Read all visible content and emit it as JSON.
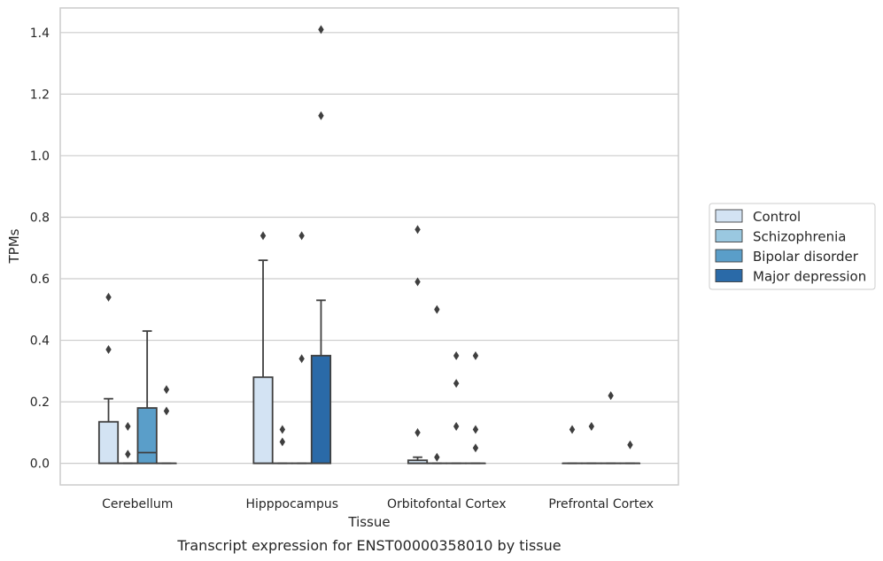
{
  "caption": "Transcript expression for ENST00000358010 by tissue",
  "chart_data": {
    "type": "box",
    "xlabel": "Tissue",
    "ylabel": "TPMs",
    "categories": [
      "Cerebellum",
      "Hipppocampus",
      "Orbitofontal Cortex",
      "Prefrontal Cortex"
    ],
    "ylim": [
      -0.07,
      1.48
    ],
    "yticks": [
      0.0,
      0.2,
      0.4,
      0.6,
      0.8,
      1.0,
      1.2,
      1.4
    ],
    "ytick_labels": [
      "0.0",
      "0.2",
      "0.4",
      "0.6",
      "0.8",
      "1.0",
      "1.2",
      "1.4"
    ],
    "grid": "horizontal",
    "legend_position": "right",
    "series": [
      {
        "name": "Control",
        "color": "#d3e3f3",
        "boxes": [
          {
            "q1": 0.0,
            "median": 0.0,
            "q3": 0.135,
            "whisker_low": 0.0,
            "whisker_high": 0.21,
            "outliers": [
              0.37,
              0.54
            ]
          },
          {
            "q1": 0.0,
            "median": 0.0,
            "q3": 0.28,
            "whisker_low": 0.0,
            "whisker_high": 0.66,
            "outliers": [
              0.74
            ]
          },
          {
            "q1": 0.0,
            "median": 0.0,
            "q3": 0.01,
            "whisker_low": 0.0,
            "whisker_high": 0.02,
            "outliers": [
              0.1,
              0.59,
              0.76
            ]
          },
          {
            "q1": 0.0,
            "median": 0.0,
            "q3": 0.0,
            "whisker_low": 0.0,
            "whisker_high": 0.0,
            "outliers": [
              0.11
            ]
          }
        ]
      },
      {
        "name": "Schizophrenia",
        "color": "#9ac8e0",
        "boxes": [
          {
            "q1": 0.0,
            "median": 0.0,
            "q3": 0.0,
            "whisker_low": 0.0,
            "whisker_high": 0.0,
            "outliers": [
              0.03,
              0.12
            ]
          },
          {
            "q1": 0.0,
            "median": 0.0,
            "q3": 0.0,
            "whisker_low": 0.0,
            "whisker_high": 0.0,
            "outliers": [
              0.07,
              0.11
            ]
          },
          {
            "q1": 0.0,
            "median": 0.0,
            "q3": 0.0,
            "whisker_low": 0.0,
            "whisker_high": 0.0,
            "outliers": [
              0.02,
              0.5
            ]
          },
          {
            "q1": 0.0,
            "median": 0.0,
            "q3": 0.0,
            "whisker_low": 0.0,
            "whisker_high": 0.0,
            "outliers": [
              0.12
            ]
          }
        ]
      },
      {
        "name": "Bipolar disorder",
        "color": "#5a9ec9",
        "boxes": [
          {
            "q1": 0.0,
            "median": 0.035,
            "q3": 0.18,
            "whisker_low": 0.0,
            "whisker_high": 0.43,
            "outliers": []
          },
          {
            "q1": 0.0,
            "median": 0.0,
            "q3": 0.0,
            "whisker_low": 0.0,
            "whisker_high": 0.0,
            "outliers": [
              0.34,
              0.74
            ]
          },
          {
            "q1": 0.0,
            "median": 0.0,
            "q3": 0.0,
            "whisker_low": 0.0,
            "whisker_high": 0.0,
            "outliers": [
              0.12,
              0.26,
              0.35
            ]
          },
          {
            "q1": 0.0,
            "median": 0.0,
            "q3": 0.0,
            "whisker_low": 0.0,
            "whisker_high": 0.0,
            "outliers": [
              0.22
            ]
          }
        ]
      },
      {
        "name": "Major depression",
        "color": "#2a6aa8",
        "boxes": [
          {
            "q1": 0.0,
            "median": 0.0,
            "q3": 0.0,
            "whisker_low": 0.0,
            "whisker_high": 0.0,
            "outliers": [
              0.17,
              0.24
            ]
          },
          {
            "q1": 0.0,
            "median": 0.0,
            "q3": 0.35,
            "whisker_low": 0.0,
            "whisker_high": 0.53,
            "outliers": [
              1.13,
              1.41
            ]
          },
          {
            "q1": 0.0,
            "median": 0.0,
            "q3": 0.0,
            "whisker_low": 0.0,
            "whisker_high": 0.0,
            "outliers": [
              0.05,
              0.11,
              0.35
            ]
          },
          {
            "q1": 0.0,
            "median": 0.0,
            "q3": 0.0,
            "whisker_low": 0.0,
            "whisker_high": 0.0,
            "outliers": [
              0.06
            ]
          }
        ]
      }
    ]
  }
}
